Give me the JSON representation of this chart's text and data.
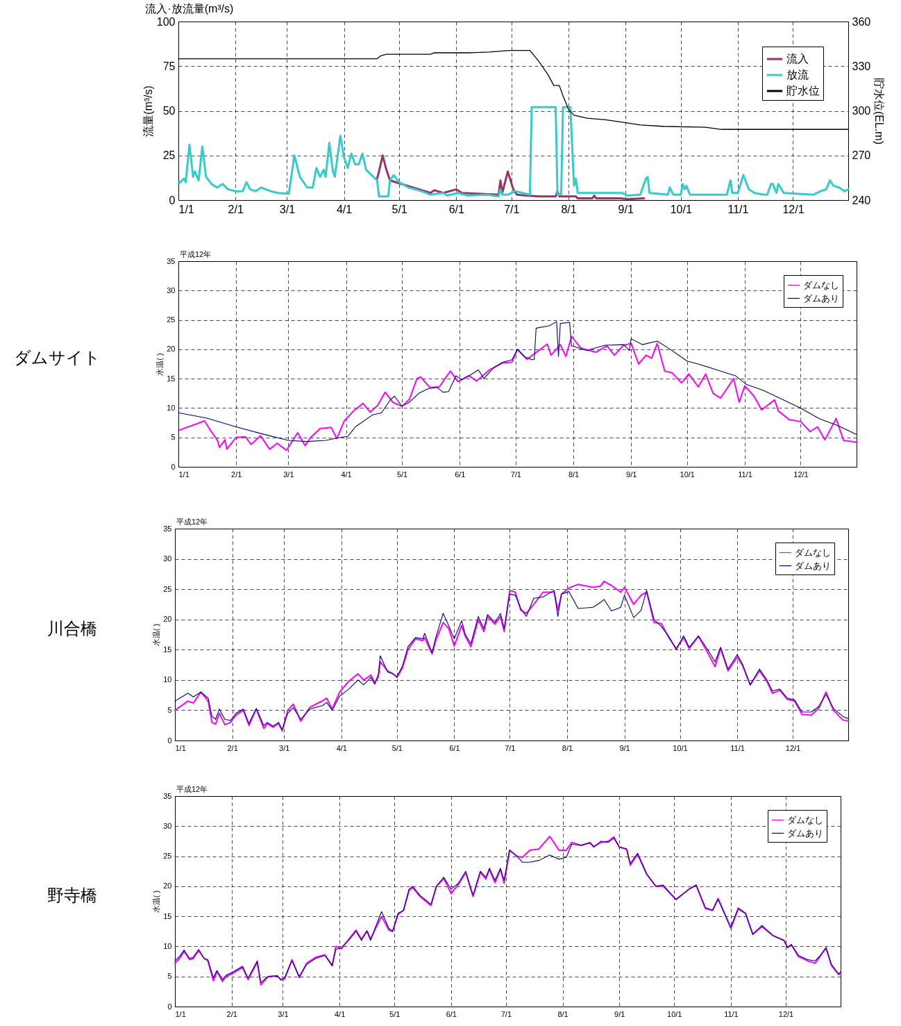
{
  "chart_data": [
    {
      "type": "line",
      "title": "流入·放流量(m³/s)",
      "ylabel": "流量(m³/s)",
      "y2label": "貯水位(EL.m)",
      "xlim": [
        "--01-01",
        "--12-31"
      ],
      "xticks": [
        {
          "value": "--01-01",
          "label": "1/1"
        },
        {
          "value": "--02-01",
          "label": "2/1"
        },
        {
          "value": "--03-01",
          "label": "3/1"
        },
        {
          "value": "--04-01",
          "label": "4/1"
        },
        {
          "value": "--05-01",
          "label": "5/1"
        },
        {
          "value": "--06-01",
          "label": "6/1"
        },
        {
          "value": "--07-01",
          "label": "7/1"
        },
        {
          "value": "--08-01",
          "label": "8/1"
        },
        {
          "value": "--09-01",
          "label": "9/1"
        },
        {
          "value": "--10-01",
          "label": "10/1"
        },
        {
          "value": "--11-01",
          "label": "11/1"
        },
        {
          "value": "--12-01",
          "label": "12/1"
        }
      ],
      "ylim": [
        0,
        100
      ],
      "yticks": [
        0,
        25,
        50,
        75,
        100
      ],
      "y2lim": [
        240,
        360
      ],
      "y2ticks": [
        240,
        270,
        300,
        330,
        360
      ],
      "grid": true,
      "legend": "top right",
      "series": [
        {
          "name": "流入",
          "color": "#993366",
          "x": [
            "--04-19",
            "--04-20",
            "--04-22",
            "--04-24",
            "--04-26",
            "--05-18",
            "--05-20",
            "--05-25",
            "--06-01",
            "--06-04",
            "--06-14",
            "--06-24",
            "--06-25",
            "--06-26",
            "--06-29",
            "--07-02",
            "--07-04",
            "--07-09",
            "--07-16",
            "--07-25",
            "--07-26",
            "--07-27",
            "--08-05",
            "--08-06",
            "--08-14",
            "--08-15",
            "--08-16",
            "--08-29",
            "--09-02",
            "--09-11"
          ],
          "values": [
            12,
            16,
            25,
            17,
            11,
            4,
            5.5,
            4,
            6,
            4,
            3.5,
            3,
            11,
            4,
            16,
            6,
            3,
            2.5,
            2,
            2,
            5,
            2,
            2,
            1,
            1,
            2.5,
            1,
            1,
            0.5,
            1
          ]
        },
        {
          "name": "放流",
          "color": "#33cccc",
          "x": [
            "--01-01",
            "--01-04",
            "--01-05",
            "--01-07",
            "--01-09",
            "--01-10",
            "--01-12",
            "--01-14",
            "--01-16",
            "--01-19",
            "--01-22",
            "--01-25",
            "--01-28",
            "--02-01",
            "--02-05",
            "--02-07",
            "--02-09",
            "--02-12",
            "--02-15",
            "--02-20",
            "--02-24",
            "--03-02",
            "--03-05",
            "--03-08",
            "--03-12",
            "--03-15",
            "--03-17",
            "--03-19",
            "--03-21",
            "--03-22",
            "--03-24",
            "--03-26",
            "--03-27",
            "--03-30",
            "--04-01",
            "--04-03",
            "--04-05",
            "--04-07",
            "--04-09",
            "--04-11",
            "--04-13",
            "--04-19",
            "--04-20",
            "--04-25",
            "--04-26",
            "--04-28",
            "--05-01",
            "--05-06",
            "--05-13",
            "--05-18",
            "--05-25",
            "--05-27",
            "--06-02",
            "--06-07",
            "--06-18",
            "--06-24",
            "--06-25",
            "--06-26",
            "--06-29",
            "--07-03",
            "--07-09",
            "--07-11",
            "--07-12",
            "--07-25",
            "--07-26",
            "--07-28",
            "--07-29",
            "--08-02",
            "--08-04",
            "--08-05",
            "--08-06",
            "--08-30",
            "--09-02",
            "--09-09",
            "--09-12",
            "--09-13",
            "--09-14",
            "--09-24",
            "--09-25",
            "--09-27",
            "--10-01",
            "--10-02",
            "--10-03",
            "--10-04",
            "--10-06",
            "--10-26",
            "--10-28",
            "--10-29",
            "--11-01",
            "--11-04",
            "--11-07",
            "--11-10",
            "--11-15",
            "--11-17",
            "--11-19",
            "--11-20",
            "--11-22",
            "--11-23",
            "--11-26",
            "--12-12",
            "--12-16",
            "--12-19",
            "--12-21",
            "--12-23",
            "--12-26",
            "--12-29",
            "--12-31"
          ],
          "values": [
            9,
            12,
            10,
            31,
            13,
            16,
            11,
            30,
            13,
            9,
            7,
            9,
            6,
            5,
            5,
            10,
            6,
            5,
            7,
            5,
            4,
            3.5,
            25,
            13,
            7,
            7,
            18,
            13,
            17,
            13,
            32,
            16,
            13,
            36,
            24,
            18,
            26,
            20,
            20,
            26,
            17,
            11,
            2,
            2,
            11,
            14,
            10,
            7,
            5,
            3,
            4,
            2.5,
            4,
            2.5,
            3,
            2,
            6,
            3,
            3,
            5,
            3.5,
            3,
            52,
            52,
            3,
            3,
            52,
            52,
            8,
            12,
            4,
            4,
            2.5,
            3,
            12,
            13,
            4,
            3,
            7,
            3,
            3,
            9,
            6,
            8,
            3,
            3,
            11,
            4,
            4,
            14,
            6,
            4,
            3,
            3,
            9,
            9,
            4,
            9,
            4,
            3,
            5,
            6,
            11,
            8,
            7,
            5,
            6
          ]
        },
        {
          "name": "貯水位",
          "color": "#000000",
          "axis": "y2",
          "x": [
            "--01-01",
            "--04-19",
            "--04-21",
            "--04-24",
            "--05-18",
            "--05-20",
            "--06-09",
            "--06-19",
            "--06-24",
            "--06-30",
            "--07-11",
            "--07-16",
            "--07-21",
            "--07-24",
            "--07-27",
            "--07-29",
            "--08-01",
            "--08-04",
            "--08-11",
            "--08-21",
            "--09-01",
            "--09-09",
            "--09-22",
            "--10-14",
            "--10-23",
            "--12-31"
          ],
          "values": [
            335,
            335,
            337,
            338,
            338,
            339,
            339,
            339.5,
            340,
            340.6,
            340.6,
            333,
            324,
            317,
            317,
            310,
            301,
            297,
            295,
            294,
            292,
            290.5,
            289.5,
            289,
            287.5,
            287.5
          ]
        }
      ]
    },
    {
      "type": "line",
      "title": "ダムサイト",
      "annotations": [
        "平成12年"
      ],
      "ylabel": "水温(  )",
      "xlim": [
        "--01-01",
        "--12-31"
      ],
      "xticks": [
        {
          "value": "--01-01",
          "label": "1/1"
        },
        {
          "value": "--02-01",
          "label": "2/1"
        },
        {
          "value": "--03-01",
          "label": "3/1"
        },
        {
          "value": "--04-01",
          "label": "4/1"
        },
        {
          "value": "--05-01",
          "label": "5/1"
        },
        {
          "value": "--06-01",
          "label": "6/1"
        },
        {
          "value": "--07-01",
          "label": "7/1"
        },
        {
          "value": "--08-01",
          "label": "8/1"
        },
        {
          "value": "--09-01",
          "label": "9/1"
        },
        {
          "value": "--10-01",
          "label": "10/1"
        },
        {
          "value": "--11-01",
          "label": "11/1"
        },
        {
          "value": "--12-01",
          "label": "12/1"
        }
      ],
      "ylim": [
        0,
        35
      ],
      "yticks": [
        0,
        5,
        10,
        15,
        20,
        25,
        30,
        35
      ],
      "grid": true,
      "legend": "top right",
      "series": [
        {
          "name": "ダムなし",
          "color": "#ff00ff",
          "x": [
            "--01-01",
            "--01-15",
            "--01-18",
            "--01-22",
            "--01-23",
            "--01-26",
            "--01-27",
            "--02-01",
            "--02-06",
            "--02-09",
            "--02-14",
            "--02-19",
            "--02-23",
            "--02-28",
            "--03-06",
            "--03-10",
            "--03-13",
            "--03-18",
            "--03-24",
            "--03-27",
            "--03-31",
            "--04-05",
            "--04-10",
            "--04-14",
            "--04-18",
            "--04-22",
            "--04-26",
            "--05-01",
            "--05-05",
            "--05-09",
            "--05-11",
            "--05-16",
            "--05-21",
            "--05-27",
            "--05-31",
            "--06-06",
            "--06-10",
            "--06-17",
            "--06-24",
            "--06-29",
            "--07-02",
            "--07-07",
            "--07-13",
            "--07-18",
            "--07-20",
            "--07-25",
            "--07-28",
            "--07-31",
            "--08-05",
            "--08-13",
            "--08-19",
            "--08-23",
            "--08-28",
            "--09-01",
            "--09-05",
            "--09-09",
            "--09-12",
            "--09-15",
            "--09-19",
            "--09-23",
            "--09-28",
            "--10-02",
            "--10-07",
            "--10-11",
            "--10-15",
            "--10-19",
            "--10-26",
            "--10-29",
            "--11-01",
            "--11-06",
            "--11-10",
            "--11-17",
            "--11-19",
            "--11-25",
            "--12-01",
            "--12-06",
            "--12-10",
            "--12-14",
            "--12-20",
            "--12-24",
            "--12-31"
          ],
          "values": [
            6.2,
            7.8,
            6.3,
            4.5,
            3.3,
            4.6,
            3,
            5,
            5.1,
            3.8,
            5.3,
            3,
            4,
            2.8,
            5.8,
            3.6,
            5,
            6.5,
            6.7,
            4.8,
            7.8,
            9.5,
            10.8,
            9.3,
            10.5,
            12.7,
            11,
            10.3,
            11.5,
            15,
            15.3,
            13.5,
            13.6,
            16.3,
            14.5,
            15.5,
            14.6,
            16.5,
            17.7,
            17.8,
            20,
            18.3,
            19.7,
            20.9,
            19,
            20.8,
            18.8,
            22.2,
            20.2,
            19.5,
            20.6,
            19,
            20.7,
            21,
            17.5,
            19,
            18.5,
            21,
            16.3,
            16,
            14.3,
            15.8,
            13.6,
            15.8,
            12.5,
            11.7,
            15,
            11,
            13.8,
            12,
            9.7,
            11.4,
            9.5,
            8,
            7.7,
            6,
            6.8,
            4.6,
            8.2,
            4.5,
            4.2
          ]
        },
        {
          "name": "ダムあり",
          "color": "#000080",
          "x": [
            "--01-01",
            "--01-16",
            "--02-01",
            "--02-15",
            "--03-01",
            "--03-11",
            "--03-21",
            "--03-29",
            "--04-02",
            "--04-06",
            "--04-15",
            "--04-20",
            "--04-25",
            "--04-27",
            "--05-01",
            "--05-05",
            "--05-10",
            "--05-15",
            "--05-20",
            "--05-23",
            "--05-26",
            "--05-30",
            "--06-02",
            "--06-07",
            "--06-11",
            "--06-14",
            "--06-19",
            "--06-24",
            "--06-29",
            "--07-02",
            "--07-06",
            "--07-10",
            "--07-11",
            "--07-12",
            "--07-19",
            "--07-23",
            "--07-24",
            "--07-25",
            "--07-30",
            "--07-31",
            "--08-08",
            "--08-18",
            "--08-28",
            "--08-31",
            "--09-01",
            "--09-07",
            "--09-15",
            "--09-22",
            "--10-01",
            "--10-07",
            "--10-17",
            "--10-27",
            "--11-02",
            "--11-11",
            "--11-21",
            "--12-01",
            "--12-11",
            "--12-21",
            "--12-31"
          ],
          "values": [
            9.2,
            8.3,
            6.8,
            5.6,
            4.5,
            4.3,
            4.5,
            5,
            5.2,
            6.8,
            8.8,
            9.2,
            11.5,
            12,
            10.3,
            11,
            12.5,
            13.3,
            13.5,
            12.7,
            12.8,
            15.5,
            14.8,
            15.7,
            16.5,
            15,
            16.8,
            17.8,
            18.2,
            20,
            18.7,
            18.2,
            18.3,
            23.6,
            24,
            24.7,
            18.8,
            24.4,
            24.6,
            20.6,
            19.8,
            20.7,
            20.8,
            19.8,
            21.8,
            20.8,
            21.4,
            20,
            18,
            17.5,
            16.5,
            15.5,
            14,
            13,
            11.5,
            10,
            8.2,
            7,
            5.5
          ]
        }
      ]
    },
    {
      "type": "line",
      "title": "川合橋",
      "annotations": [
        "平成12年"
      ],
      "ylabel": "水温(  )",
      "xlim": [
        "--01-01",
        "--12-31"
      ],
      "xticks": [
        {
          "value": "--01-01",
          "label": "1/1"
        },
        {
          "value": "--02-01",
          "label": "2/1"
        },
        {
          "value": "--03-01",
          "label": "3/1"
        },
        {
          "value": "--04-01",
          "label": "4/1"
        },
        {
          "value": "--05-01",
          "label": "5/1"
        },
        {
          "value": "--06-01",
          "label": "6/1"
        },
        {
          "value": "--07-01",
          "label": "7/1"
        },
        {
          "value": "--08-01",
          "label": "8/1"
        },
        {
          "value": "--09-01",
          "label": "9/1"
        },
        {
          "value": "--10-01",
          "label": "10/1"
        },
        {
          "value": "--11-01",
          "label": "11/1"
        },
        {
          "value": "--12-01",
          "label": "12/1"
        }
      ],
      "ylim": [
        0,
        35
      ],
      "yticks": [
        0,
        5,
        10,
        15,
        20,
        25,
        30,
        35
      ],
      "grid": true,
      "legend": "top right",
      "x": [
        "--01-01",
        "--01-08",
        "--01-11",
        "--01-15",
        "--01-19",
        "--01-21",
        "--01-23",
        "--01-25",
        "--01-28",
        "--01-31",
        "--02-03",
        "--02-07",
        "--02-10",
        "--02-14",
        "--02-18",
        "--02-20",
        "--02-23",
        "--02-26",
        "--02-28",
        "--03-03",
        "--03-06",
        "--03-10",
        "--03-15",
        "--03-22",
        "--03-24",
        "--03-27",
        "--03-31",
        "--04-05",
        "--04-10",
        "--04-13",
        "--04-17",
        "--04-19",
        "--04-21",
        "--04-22",
        "--04-26",
        "--04-29",
        "--05-01",
        "--05-04",
        "--05-07",
        "--05-11",
        "--05-15",
        "--05-16",
        "--05-20",
        "--05-22",
        "--05-26",
        "--05-29",
        "--06-01",
        "--06-05",
        "--06-07",
        "--06-10",
        "--06-14",
        "--06-17",
        "--06-19",
        "--06-23",
        "--06-26",
        "--06-28",
        "--07-01",
        "--07-04",
        "--07-07",
        "--07-10",
        "--07-14",
        "--07-19",
        "--07-25",
        "--07-27",
        "--07-29",
        "--08-02",
        "--08-07",
        "--08-15",
        "--08-19",
        "--08-21",
        "--08-25",
        "--08-30",
        "--09-01",
        "--09-06",
        "--09-10",
        "--09-13",
        "--09-17",
        "--09-21",
        "--09-25",
        "--09-29",
        "--10-03",
        "--10-06",
        "--10-11",
        "--10-16",
        "--10-20",
        "--10-23",
        "--10-27",
        "--11-01",
        "--11-04",
        "--11-08",
        "--11-13",
        "--11-17",
        "--11-20",
        "--11-24",
        "--11-28",
        "--12-02",
        "--12-06",
        "--12-11",
        "--12-15",
        "--12-19",
        "--12-23",
        "--12-28",
        "--12-31"
      ],
      "series": [
        {
          "name": "ダムなし",
          "color": "#ff00ff",
          "values": [
            5,
            6.5,
            6.2,
            8,
            6.5,
            3,
            2.7,
            4.5,
            2.6,
            3,
            4.2,
            5,
            2.5,
            5.2,
            2,
            2.8,
            2.2,
            2.8,
            1.6,
            5,
            6,
            3.2,
            5.5,
            6.6,
            7,
            5.2,
            8,
            9.8,
            11,
            10,
            10.8,
            9.5,
            10.5,
            13,
            11.5,
            11,
            10.4,
            12,
            15,
            16.8,
            16.5,
            17,
            14.3,
            16.5,
            19.5,
            18.5,
            15.6,
            19,
            17.2,
            15.5,
            20,
            18,
            20.5,
            19.2,
            20.5,
            18,
            24.8,
            24.5,
            21.5,
            21,
            22.5,
            24.5,
            24.5,
            21.5,
            24.2,
            25.2,
            25.8,
            25.3,
            25.5,
            26.3,
            25.6,
            24.5,
            25.3,
            22.5,
            24,
            24.5,
            19.5,
            19.3,
            17,
            15.2,
            17,
            15.2,
            17.2,
            14.5,
            12.2,
            15.2,
            11.5,
            13.8,
            12.3,
            9.2,
            11.5,
            9.8,
            7.8,
            8.3,
            6.8,
            6.5,
            4.3,
            4.2,
            5.3,
            8,
            5,
            3.4,
            3.2
          ]
        },
        {
          "name": "ダムあり",
          "color": "#000080",
          "values": [
            6.5,
            7.8,
            7.2,
            8,
            7,
            4,
            3.5,
            5.2,
            3.5,
            3.3,
            4.5,
            5.2,
            2.8,
            5.3,
            2.5,
            3,
            2.4,
            3,
            1.8,
            4.5,
            5.4,
            3.5,
            5.2,
            5.8,
            6.3,
            5,
            7.3,
            8.5,
            10,
            9.2,
            10.4,
            9.3,
            11,
            14,
            11.3,
            11,
            10.5,
            12.3,
            15.5,
            17,
            16.8,
            17.7,
            14.5,
            17,
            21,
            19,
            16.8,
            19.8,
            17.5,
            16,
            20.5,
            18.5,
            20.8,
            19.5,
            21,
            18.5,
            24.2,
            24,
            21.8,
            20.5,
            23.5,
            23.7,
            24.8,
            20.5,
            24.2,
            24.6,
            21.8,
            22,
            22.8,
            23.3,
            21.4,
            22,
            24,
            20.3,
            21.5,
            24.8,
            20,
            18.8,
            17.2,
            15,
            17.3,
            15.4,
            17.3,
            15,
            13,
            15.4,
            11.8,
            14.2,
            12.5,
            9.2,
            11.8,
            10,
            8.2,
            8.5,
            7,
            6.7,
            4.7,
            4.7,
            5.6,
            7.6,
            5.3,
            4,
            3.6
          ]
        }
      ]
    },
    {
      "type": "line",
      "title": "野寺橋",
      "annotations": [
        "平成12年"
      ],
      "ylabel": "水温(  )",
      "xlim": [
        "--01-01",
        "--12-31"
      ],
      "xticks": [
        {
          "value": "--01-01",
          "label": "1/1"
        },
        {
          "value": "--02-01",
          "label": "2/1"
        },
        {
          "value": "--03-01",
          "label": "3/1"
        },
        {
          "value": "--04-01",
          "label": "4/1"
        },
        {
          "value": "--05-01",
          "label": "5/1"
        },
        {
          "value": "--06-01",
          "label": "6/1"
        },
        {
          "value": "--07-01",
          "label": "7/1"
        },
        {
          "value": "--08-01",
          "label": "8/1"
        },
        {
          "value": "--09-01",
          "label": "9/1"
        },
        {
          "value": "--10-01",
          "label": "10/1"
        },
        {
          "value": "--11-01",
          "label": "11/1"
        },
        {
          "value": "--12-01",
          "label": "12/1"
        }
      ],
      "ylim": [
        0,
        35
      ],
      "yticks": [
        0,
        5,
        10,
        15,
        20,
        25,
        30,
        35
      ],
      "grid": true,
      "legend": "top right",
      "x": [
        "--01-01",
        "--01-04",
        "--01-06",
        "--01-09",
        "--01-11",
        "--01-14",
        "--01-17",
        "--01-19",
        "--01-22",
        "--01-24",
        "--01-27",
        "--01-29",
        "--02-02",
        "--02-07",
        "--02-10",
        "--02-15",
        "--02-17",
        "--02-21",
        "--02-26",
        "--02-28",
        "--03-02",
        "--03-06",
        "--03-10",
        "--03-14",
        "--03-19",
        "--03-24",
        "--03-28",
        "--03-30",
        "--04-02",
        "--04-06",
        "--04-10",
        "--04-13",
        "--04-16",
        "--04-18",
        "--04-21",
        "--04-24",
        "--04-28",
        "--04-30",
        "--05-03",
        "--05-06",
        "--05-09",
        "--05-11",
        "--05-15",
        "--05-21",
        "--05-24",
        "--05-28",
        "--06-01",
        "--06-05",
        "--06-09",
        "--06-13",
        "--06-17",
        "--06-20",
        "--06-22",
        "--06-25",
        "--06-28",
        "--06-30",
        "--07-03",
        "--07-07",
        "--07-10",
        "--07-14",
        "--07-19",
        "--07-25",
        "--07-30",
        "--08-03",
        "--08-06",
        "--08-11",
        "--08-16",
        "--08-18",
        "--08-22",
        "--08-26",
        "--08-29",
        "--09-01",
        "--09-05",
        "--09-07",
        "--09-11",
        "--09-16",
        "--09-21",
        "--09-25",
        "--10-02",
        "--10-09",
        "--10-13",
        "--10-18",
        "--10-22",
        "--10-25",
        "--11-01",
        "--11-05",
        "--11-09",
        "--11-13",
        "--11-18",
        "--11-24",
        "--11-30",
        "--12-02",
        "--12-04",
        "--12-08",
        "--12-13",
        "--12-17",
        "--12-19",
        "--12-23",
        "--12-26",
        "--12-30",
        "--12-31"
      ],
      "series": [
        {
          "name": "ダムなし",
          "color": "#ff00ff",
          "values": [
            7.2,
            8.2,
            9.2,
            7.8,
            8,
            9.3,
            8,
            7.6,
            4.3,
            5.8,
            4.2,
            5,
            5.6,
            6.5,
            4.5,
            7.4,
            3.6,
            5,
            5.1,
            4.4,
            4.6,
            7.8,
            4.8,
            7.2,
            8.2,
            8.6,
            6.8,
            10,
            9.6,
            11.2,
            12.7,
            11.2,
            12.6,
            11.2,
            13.2,
            15,
            12.7,
            12.5,
            15.3,
            16,
            19.3,
            19.8,
            18.3,
            16.8,
            20,
            21.3,
            18.8,
            20.3,
            22.3,
            18.3,
            22.3,
            21.2,
            22.8,
            20.6,
            22.8,
            20.5,
            26,
            25,
            24.8,
            26,
            26.2,
            28.3,
            26,
            26,
            27.3,
            26.8,
            27.2,
            26.6,
            27.3,
            27.5,
            28.2,
            26.5,
            26.2,
            23.5,
            25.3,
            22,
            20,
            20,
            17.8,
            19.5,
            20.2,
            16.3,
            16,
            18,
            13,
            16.2,
            15.5,
            12,
            13.3,
            11.8,
            11,
            9.8,
            10.3,
            8.3,
            7.6,
            7.2,
            8,
            9.8,
            6.8,
            5.3,
            5.6
          ]
        },
        {
          "name": "ダムあり",
          "color": "#000080",
          "values": [
            7.6,
            8.5,
            9.4,
            8,
            8.2,
            9.5,
            8,
            7.8,
            4.8,
            6,
            4.5,
            5.2,
            5.8,
            6.7,
            4.7,
            7.6,
            4,
            5,
            5.1,
            4.5,
            4.8,
            7.6,
            5,
            7,
            8,
            8.5,
            6.8,
            9.5,
            9.8,
            11,
            12.5,
            11,
            12.5,
            11,
            13.5,
            15.8,
            13,
            12.5,
            15.5,
            16,
            19.5,
            20,
            18.5,
            17,
            20,
            21.5,
            19.5,
            20.5,
            22.5,
            18.5,
            22.5,
            21.5,
            23,
            21,
            23,
            21,
            26,
            25,
            24,
            24,
            24.3,
            25.2,
            24.5,
            24.8,
            27,
            26.8,
            27.3,
            26.5,
            27.5,
            27.3,
            28,
            26.5,
            26.2,
            23.8,
            25.5,
            22,
            20,
            20.2,
            17.8,
            19.5,
            20.2,
            16.5,
            16,
            17.8,
            13.2,
            16.4,
            15.5,
            12,
            13.5,
            11.8,
            11,
            9.8,
            10.3,
            8.5,
            7.8,
            7.6,
            8.2,
            9.7,
            7,
            5.4,
            5.8
          ]
        }
      ]
    }
  ]
}
